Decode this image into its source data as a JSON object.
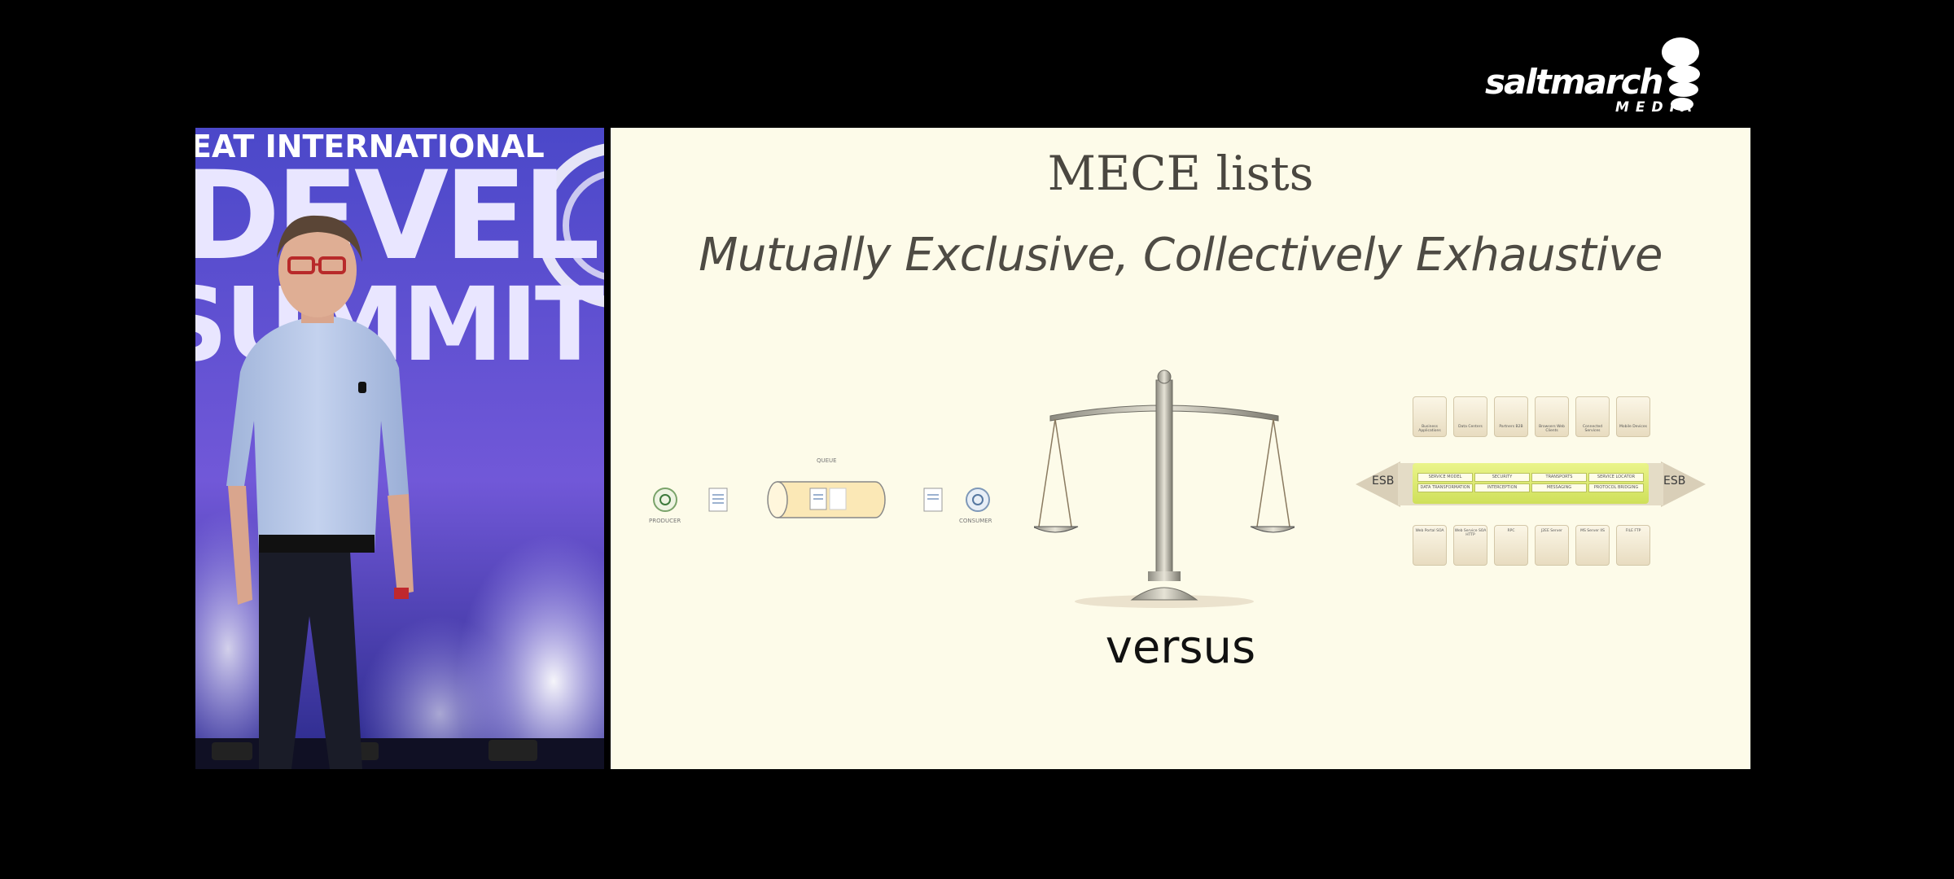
{
  "logo": {
    "wordmark": "saltmarch",
    "sub": "MEDIA"
  },
  "speaker_panel": {
    "backdrop_line1": "EAT INTERNATIONAL",
    "backdrop_line2": "DEVEL",
    "backdrop_line3": "SUMMIT"
  },
  "slide": {
    "title": "MECE lists",
    "subtitle": "Mutually Exclusive, Collectively Exhaustive",
    "versus": "versus",
    "queue": {
      "producer_label": "PRODUCER",
      "queue_label": "QUEUE",
      "consumer_label": "CONSUMER"
    },
    "esb": {
      "left_label": "ESB",
      "right_label": "ESB",
      "top_services": [
        "Business Applications",
        "Data Centers",
        "Partners B2B",
        "Browsers Web Clients",
        "Connected Services",
        "Mobile Devices"
      ],
      "bus_row1": [
        "SERVICE MODEL",
        "SECURITY",
        "TRANSPORTS",
        "SERVICE LOCATOR"
      ],
      "bus_row2": [
        "DATA TRANSFORMATION",
        "INTERCEPTION",
        "MESSAGING",
        "PROTOCOL BRIDGING"
      ],
      "bottom_services": [
        "Web Portal SOA",
        "Web Service SOA HTTP",
        "RPC",
        "J2EE Server",
        "MS Server IIS",
        "FILE FTP"
      ]
    }
  }
}
